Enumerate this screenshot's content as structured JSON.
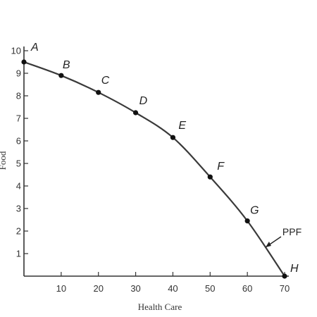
{
  "chart_data": {
    "type": "line",
    "xlabel": "Health Care",
    "ylabel": "Food",
    "xlim": [
      0,
      70
    ],
    "ylim": [
      0,
      10
    ],
    "x_ticks": [
      10,
      20,
      30,
      40,
      50,
      60,
      70
    ],
    "y_ticks": [
      1,
      2,
      3,
      4,
      5,
      6,
      7,
      8,
      9,
      10
    ],
    "grid": false,
    "series": [
      {
        "name": "PPF",
        "points": [
          {
            "label": "A",
            "x": 0,
            "y": 9.5
          },
          {
            "label": "B",
            "x": 10,
            "y": 8.9
          },
          {
            "label": "C",
            "x": 20,
            "y": 8.15
          },
          {
            "label": "D",
            "x": 30,
            "y": 7.25
          },
          {
            "label": "E",
            "x": 40,
            "y": 6.15
          },
          {
            "label": "F",
            "x": 50,
            "y": 4.4
          },
          {
            "label": "G",
            "x": 60,
            "y": 2.45
          },
          {
            "label": "H",
            "x": 70,
            "y": 0
          }
        ]
      }
    ],
    "annotations": [
      {
        "text": "PPF",
        "points_to_series": "PPF"
      }
    ]
  }
}
